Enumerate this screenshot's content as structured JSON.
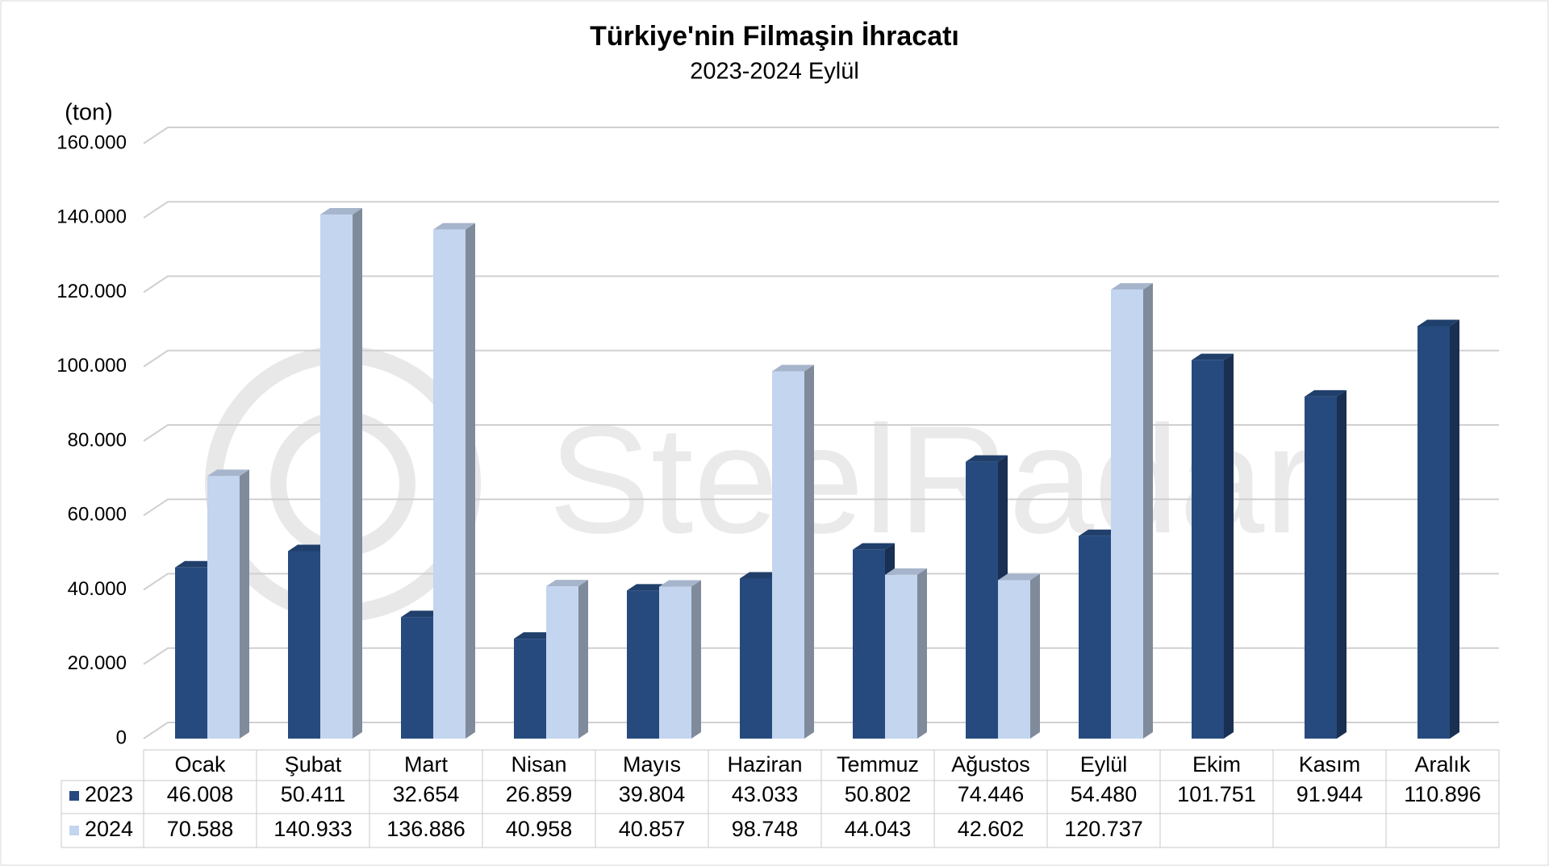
{
  "chart_data": {
    "type": "bar3d",
    "title": "Türkiye'nin Filmaşin İhracatı",
    "subtitle": "2023-2024 Eylül",
    "y_label": "(ton)",
    "watermark": "SteelRadar",
    "categories": [
      "Ocak",
      "Şubat",
      "Mart",
      "Nisan",
      "Mayıs",
      "Haziran",
      "Temmuz",
      "Ağustos",
      "Eylül",
      "Ekim",
      "Kasım",
      "Aralık"
    ],
    "series": [
      {
        "name": "2023",
        "color": "#264a7e",
        "values": [
          46008,
          50411,
          32654,
          26859,
          39804,
          43033,
          50802,
          74446,
          54480,
          101751,
          91944,
          110896
        ],
        "value_labels": [
          "46.008",
          "50.411",
          "32.654",
          "26.859",
          "39.804",
          "43.033",
          "50.802",
          "74.446",
          "54.480",
          "101.751",
          "91.944",
          "110.896"
        ]
      },
      {
        "name": "2024",
        "color": "#c3d5ef",
        "values": [
          70588,
          140933,
          136886,
          40958,
          40857,
          98748,
          44043,
          42602,
          120737,
          null,
          null,
          null
        ],
        "value_labels": [
          "70.588",
          "140.933",
          "136.886",
          "40.958",
          "40.857",
          "98.748",
          "44.043",
          "42.602",
          "120.737",
          null,
          null,
          null
        ]
      }
    ],
    "ylim": [
      0,
      160000
    ],
    "yticks": [
      0,
      {
        "value": 20000,
        "label": "20.000"
      },
      {
        "value": 40000,
        "label": "40.000"
      },
      {
        "value": 60000,
        "label": "60.000"
      },
      {
        "value": 80000,
        "label": "80.000"
      },
      {
        "value": 100000,
        "label": "100.000"
      },
      {
        "value": 120000,
        "label": "120.000"
      },
      {
        "value": 140000,
        "label": "140.000"
      },
      {
        "value": 160000,
        "label": "160.000"
      }
    ],
    "grid": true
  }
}
